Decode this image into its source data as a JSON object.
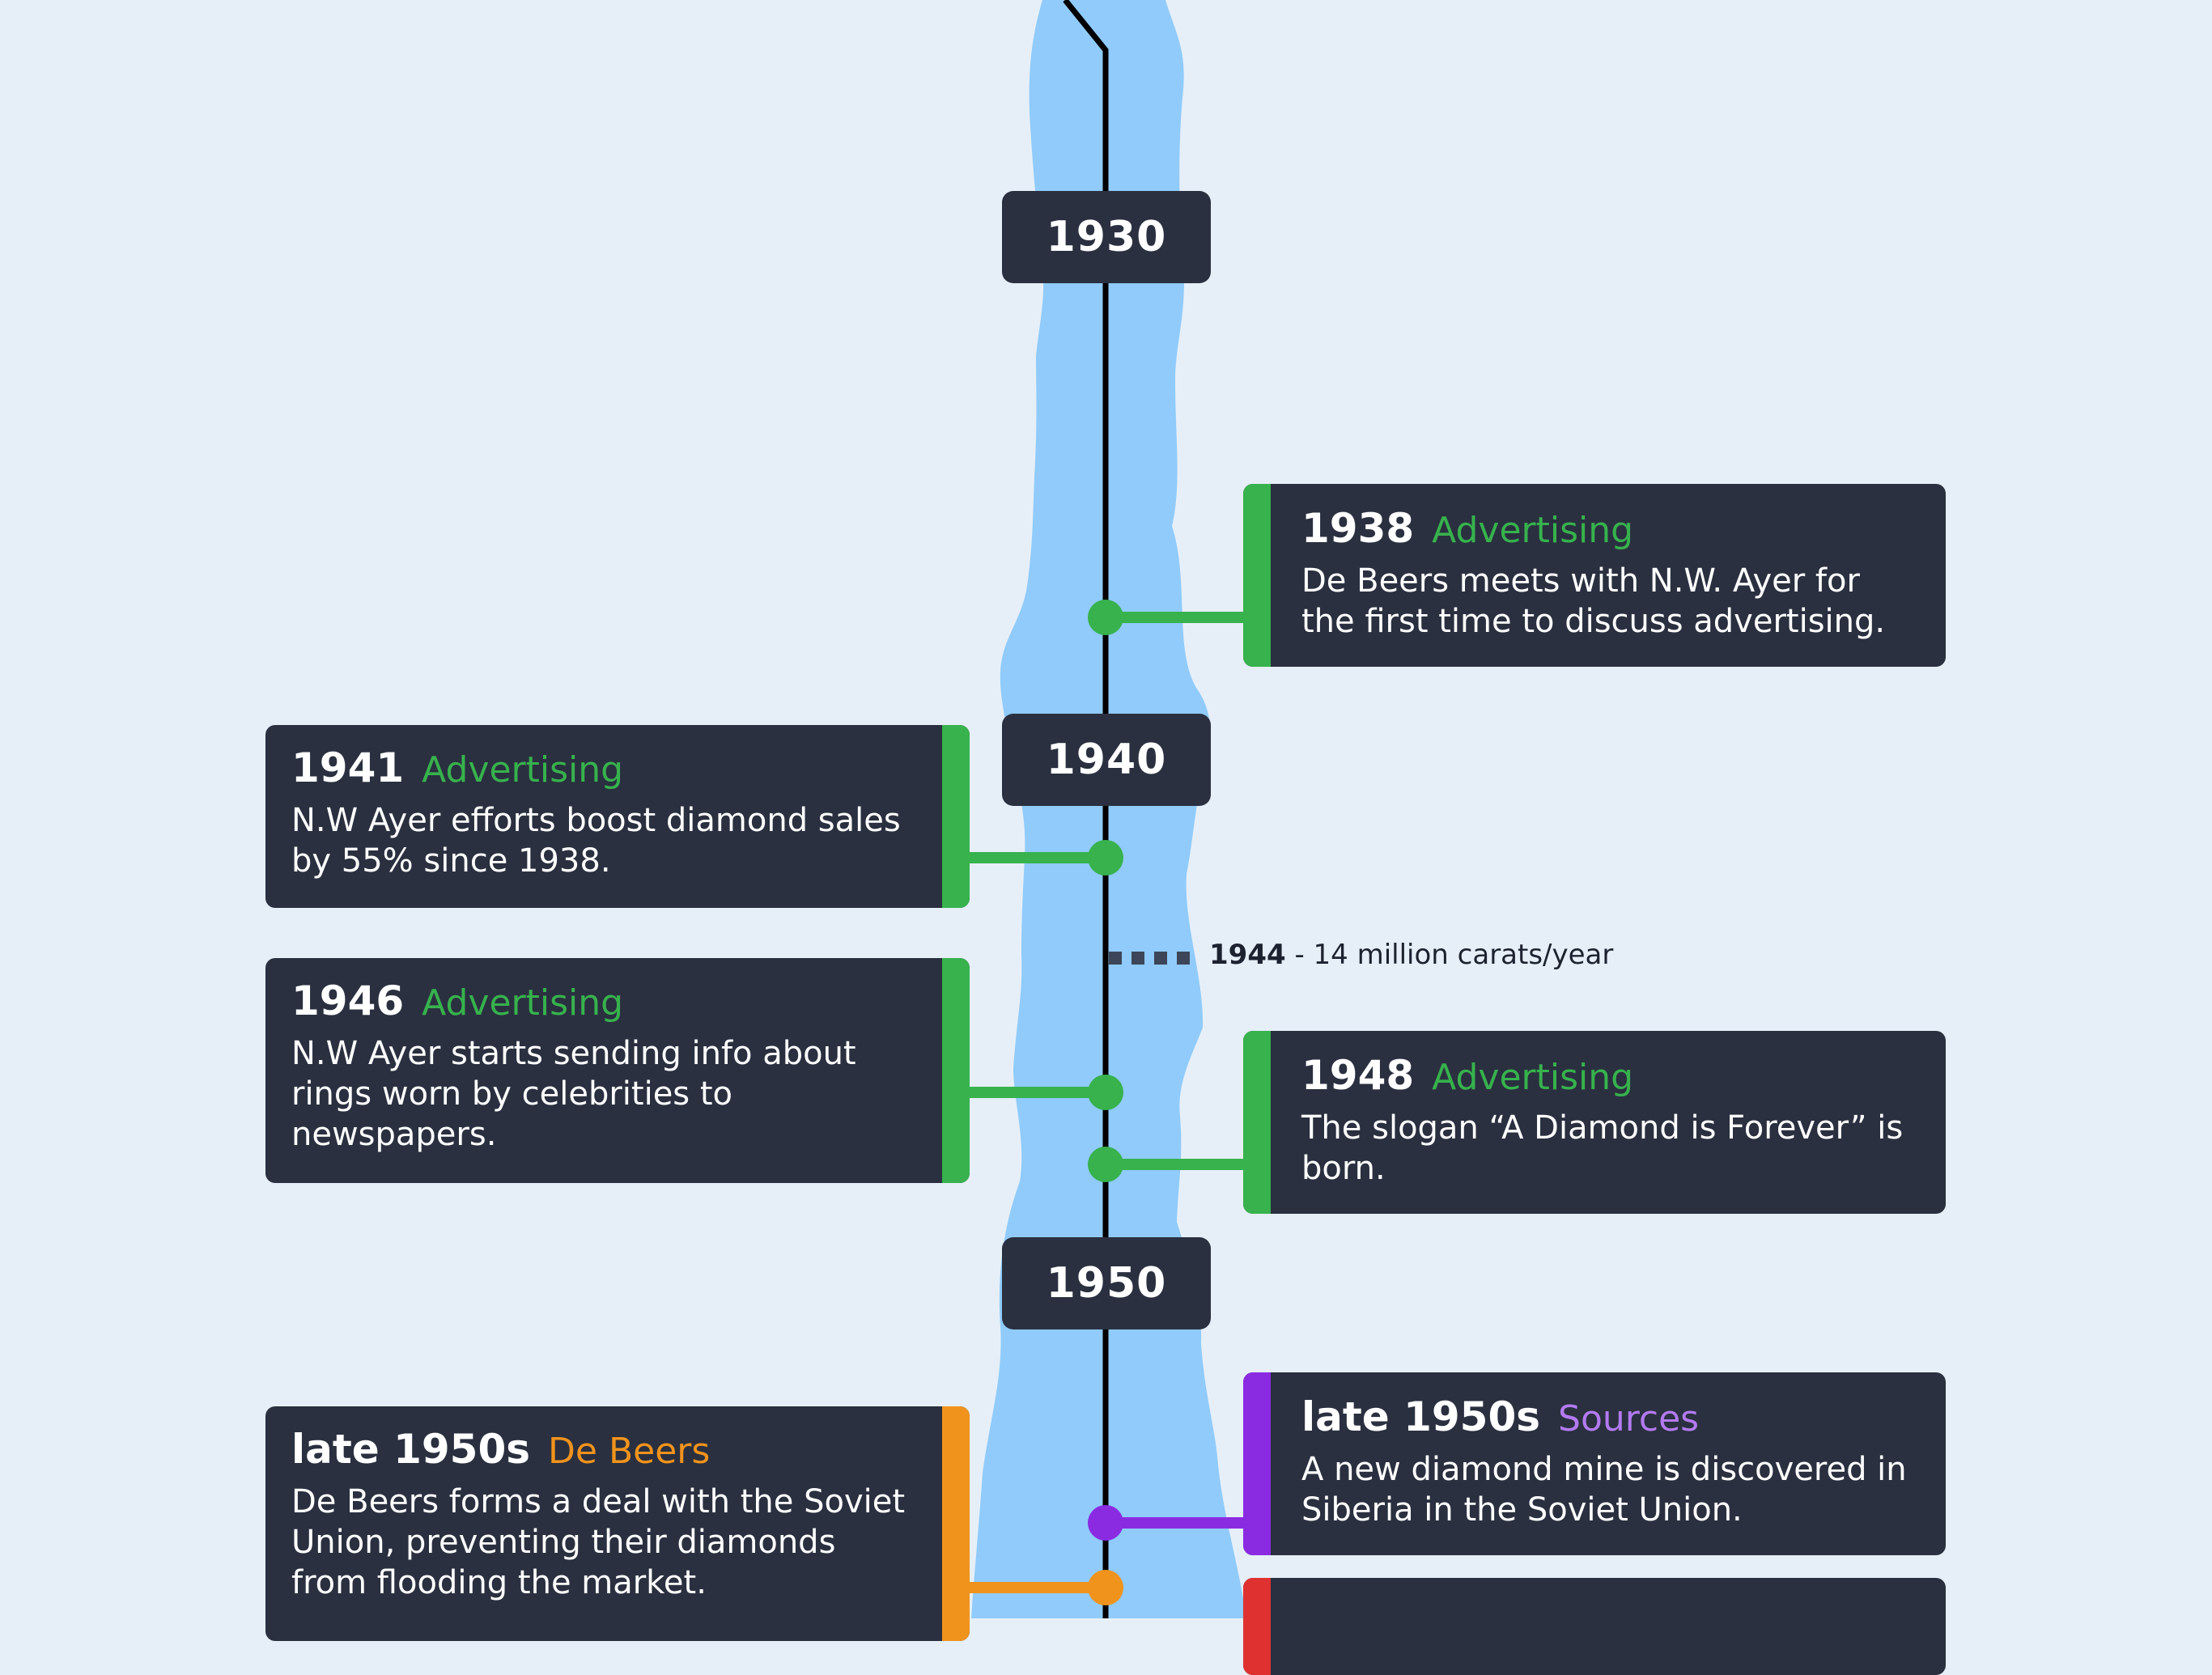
{
  "colors": {
    "background": "#e6eff8",
    "river": "#90cbfb",
    "panel": "#2a303f",
    "advertising": "#37b24d",
    "de_beers": "#f0931c",
    "sources": "#8a2be2",
    "sources_text": "#b37af0",
    "red": "#e03131"
  },
  "decades": [
    "1930",
    "1940",
    "1950"
  ],
  "events": [
    {
      "year": "1938",
      "category": "Advertising",
      "color": "#37b24d",
      "text_color": "#37b24d",
      "description": "De Beers meets with N.W. Ayer for the first time to discuss advertising."
    },
    {
      "year": "1941",
      "category": "Advertising",
      "color": "#37b24d",
      "text_color": "#37b24d",
      "description": "N.W Ayer efforts boost diamond sales by 55% since 1938."
    },
    {
      "year": "1946",
      "category": "Advertising",
      "color": "#37b24d",
      "text_color": "#37b24d",
      "description": "N.W Ayer starts sending info about rings worn by celebrities to newspapers."
    },
    {
      "year": "1948",
      "category": "Advertising",
      "color": "#37b24d",
      "text_color": "#37b24d",
      "description": "The slogan “A Diamond is Forever” is born."
    },
    {
      "year": "late 1950s",
      "category": "Sources",
      "color": "#8a2be2",
      "text_color": "#b37af0",
      "description": "A new diamond mine is discovered in Siberia in the Soviet Union."
    },
    {
      "year": "late 1950s",
      "category": "De Beers",
      "color": "#f0931c",
      "text_color": "#f0931c",
      "description": "De Beers forms a deal with the Soviet Union, preventing their diamonds from flooding the market."
    }
  ],
  "production_note": {
    "year": "1944",
    "text": " - 14 million carats/year"
  }
}
